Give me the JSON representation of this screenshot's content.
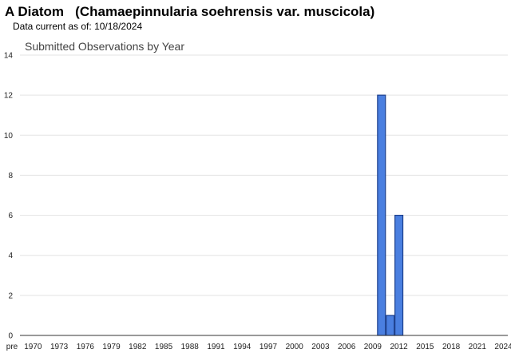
{
  "header": {
    "title_prefix": "A Diatom",
    "title_species": "(Chamaepinnularia soehrensis var. muscicola)",
    "data_current_label": "Data current as of:",
    "data_current_date": "10/18/2024"
  },
  "colors": {
    "bar_fill": "#4a7fe0",
    "bar_stroke": "#1c3f8c",
    "grid": "#e3e3e3",
    "axis": "#333333"
  },
  "chart_data": {
    "type": "bar",
    "title": "Submitted Observations by Year",
    "xlabel": "",
    "ylabel": "",
    "ylim": [
      0,
      14
    ],
    "yticks": [
      0,
      2,
      4,
      6,
      8,
      10,
      12,
      14
    ],
    "categories": [
      "pre",
      "1970",
      "1971",
      "1972",
      "1973",
      "1974",
      "1975",
      "1976",
      "1977",
      "1978",
      "1979",
      "1980",
      "1981",
      "1982",
      "1983",
      "1984",
      "1985",
      "1986",
      "1987",
      "1988",
      "1989",
      "1990",
      "1991",
      "1992",
      "1993",
      "1994",
      "1995",
      "1996",
      "1997",
      "1998",
      "1999",
      "2000",
      "2001",
      "2002",
      "2003",
      "2004",
      "2005",
      "2006",
      "2007",
      "2008",
      "2009",
      "2010",
      "2011",
      "2012",
      "2013",
      "2014",
      "2015",
      "2016",
      "2017",
      "2018",
      "2019",
      "2020",
      "2021",
      "2022",
      "2023",
      "2024"
    ],
    "tick_labels": [
      "pre",
      "1970",
      "1973",
      "1976",
      "1979",
      "1982",
      "1985",
      "1988",
      "1991",
      "1994",
      "1997",
      "2000",
      "2003",
      "2006",
      "2009",
      "2012",
      "2015",
      "2018",
      "2021",
      "2024"
    ],
    "values": [
      0,
      0,
      0,
      0,
      0,
      0,
      0,
      0,
      0,
      0,
      0,
      0,
      0,
      0,
      0,
      0,
      0,
      0,
      0,
      0,
      0,
      0,
      0,
      0,
      0,
      0,
      0,
      0,
      0,
      0,
      0,
      0,
      0,
      0,
      0,
      0,
      0,
      0,
      0,
      0,
      0,
      12,
      1,
      6,
      0,
      0,
      0,
      0,
      0,
      0,
      0,
      0,
      0,
      0,
      0,
      0
    ],
    "grid": true,
    "legend": "none"
  }
}
